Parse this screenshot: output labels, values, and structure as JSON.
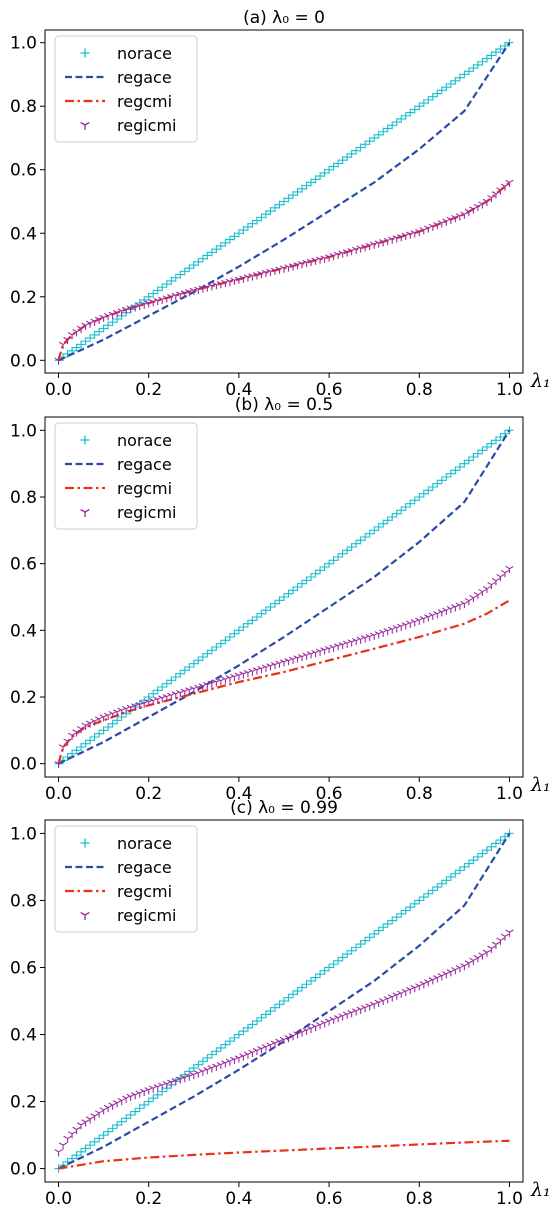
{
  "chart_data": [
    {
      "type": "line",
      "title": "(a) λ₀ = 0",
      "xlabel": "λ₁",
      "ylabel": "",
      "xlim": [
        -0.03,
        1.03
      ],
      "ylim": [
        -0.04,
        1.04
      ],
      "xticks": [
        "0.0",
        "0.2",
        "0.4",
        "0.6",
        "0.8",
        "1.0"
      ],
      "yticks": [
        "0.0",
        "0.2",
        "0.4",
        "0.6",
        "0.8",
        "1.0"
      ],
      "grid": false,
      "legend": "top-left",
      "series": [
        {
          "name": "norace",
          "color": "#17becf",
          "style": "plus-markers",
          "x": [
            0,
            0.1,
            0.2,
            0.3,
            0.4,
            0.5,
            0.6,
            0.7,
            0.8,
            0.9,
            1.0
          ],
          "y": [
            0,
            0.1,
            0.2,
            0.3,
            0.4,
            0.5,
            0.6,
            0.7,
            0.8,
            0.9,
            1.0
          ]
        },
        {
          "name": "regace",
          "color": "#2b4aa8",
          "style": "dashed",
          "x": [
            0,
            0.1,
            0.2,
            0.3,
            0.4,
            0.5,
            0.6,
            0.7,
            0.8,
            0.9,
            1.0
          ],
          "y": [
            0,
            0.065,
            0.14,
            0.215,
            0.295,
            0.38,
            0.47,
            0.56,
            0.665,
            0.785,
            1.0
          ]
        },
        {
          "name": "regcmi",
          "color": "#e8331c",
          "style": "dash-dot",
          "x": [
            0,
            0.01,
            0.03,
            0.06,
            0.1,
            0.15,
            0.2,
            0.3,
            0.4,
            0.5,
            0.6,
            0.7,
            0.8,
            0.9,
            0.95,
            1.0
          ],
          "y": [
            0,
            0.05,
            0.08,
            0.11,
            0.135,
            0.16,
            0.18,
            0.22,
            0.255,
            0.29,
            0.325,
            0.365,
            0.405,
            0.46,
            0.5,
            0.56
          ]
        },
        {
          "name": "regicmi",
          "color": "#9c2a9c",
          "style": "tri-markers",
          "x": [
            0,
            0.01,
            0.03,
            0.06,
            0.1,
            0.15,
            0.2,
            0.3,
            0.4,
            0.5,
            0.6,
            0.7,
            0.8,
            0.9,
            0.95,
            1.0
          ],
          "y": [
            0,
            0.05,
            0.08,
            0.11,
            0.135,
            0.16,
            0.18,
            0.22,
            0.255,
            0.29,
            0.325,
            0.365,
            0.405,
            0.46,
            0.5,
            0.56
          ]
        }
      ]
    },
    {
      "type": "line",
      "title": "(b) λ₀ = 0.5",
      "xlabel": "λ₁",
      "ylabel": "",
      "xlim": [
        -0.03,
        1.03
      ],
      "ylim": [
        -0.04,
        1.04
      ],
      "xticks": [
        "0.0",
        "0.2",
        "0.4",
        "0.6",
        "0.8",
        "1.0"
      ],
      "yticks": [
        "0.0",
        "0.2",
        "0.4",
        "0.6",
        "0.8",
        "1.0"
      ],
      "grid": false,
      "legend": "top-left",
      "series": [
        {
          "name": "norace",
          "color": "#17becf",
          "style": "plus-markers",
          "x": [
            0,
            0.1,
            0.2,
            0.3,
            0.4,
            0.5,
            0.6,
            0.7,
            0.8,
            0.9,
            1.0
          ],
          "y": [
            0,
            0.1,
            0.2,
            0.3,
            0.4,
            0.5,
            0.6,
            0.7,
            0.8,
            0.9,
            1.0
          ]
        },
        {
          "name": "regace",
          "color": "#2b4aa8",
          "style": "dashed",
          "x": [
            0,
            0.1,
            0.2,
            0.3,
            0.4,
            0.5,
            0.6,
            0.7,
            0.8,
            0.9,
            1.0
          ],
          "y": [
            0,
            0.065,
            0.14,
            0.215,
            0.295,
            0.38,
            0.47,
            0.56,
            0.665,
            0.785,
            1.0
          ]
        },
        {
          "name": "regcmi",
          "color": "#e8331c",
          "style": "dash-dot",
          "x": [
            0,
            0.01,
            0.03,
            0.06,
            0.1,
            0.15,
            0.2,
            0.3,
            0.4,
            0.5,
            0.6,
            0.7,
            0.8,
            0.9,
            0.95,
            1.0
          ],
          "y": [
            0,
            0.05,
            0.08,
            0.11,
            0.13,
            0.155,
            0.175,
            0.21,
            0.245,
            0.275,
            0.31,
            0.345,
            0.38,
            0.42,
            0.45,
            0.49
          ]
        },
        {
          "name": "regicmi",
          "color": "#9c2a9c",
          "style": "tri-markers",
          "x": [
            0,
            0.01,
            0.03,
            0.06,
            0.1,
            0.15,
            0.2,
            0.3,
            0.4,
            0.5,
            0.6,
            0.7,
            0.8,
            0.9,
            0.95,
            1.0
          ],
          "y": [
            0,
            0.05,
            0.085,
            0.115,
            0.14,
            0.165,
            0.185,
            0.225,
            0.265,
            0.305,
            0.345,
            0.385,
            0.43,
            0.48,
            0.525,
            0.585
          ]
        }
      ]
    },
    {
      "type": "line",
      "title": "(c) λ₀ = 0.99",
      "xlabel": "λ₁",
      "ylabel": "",
      "xlim": [
        -0.03,
        1.03
      ],
      "ylim": [
        -0.04,
        1.04
      ],
      "xticks": [
        "0.0",
        "0.2",
        "0.4",
        "0.6",
        "0.8",
        "1.0"
      ],
      "yticks": [
        "0.0",
        "0.2",
        "0.4",
        "0.6",
        "0.8",
        "1.0"
      ],
      "grid": false,
      "legend": "top-left",
      "series": [
        {
          "name": "norace",
          "color": "#17becf",
          "style": "plus-markers",
          "x": [
            0,
            0.1,
            0.2,
            0.3,
            0.4,
            0.5,
            0.6,
            0.7,
            0.8,
            0.9,
            1.0
          ],
          "y": [
            0,
            0.1,
            0.2,
            0.3,
            0.4,
            0.5,
            0.6,
            0.7,
            0.8,
            0.9,
            1.0
          ]
        },
        {
          "name": "regace",
          "color": "#2b4aa8",
          "style": "dashed",
          "x": [
            0,
            0.1,
            0.2,
            0.3,
            0.4,
            0.5,
            0.6,
            0.7,
            0.8,
            0.9,
            1.0
          ],
          "y": [
            0,
            0.065,
            0.14,
            0.215,
            0.295,
            0.38,
            0.47,
            0.56,
            0.665,
            0.785,
            1.0
          ]
        },
        {
          "name": "regcmi",
          "color": "#e8331c",
          "style": "dash-dot",
          "x": [
            0,
            0.1,
            0.2,
            0.3,
            0.4,
            0.5,
            0.6,
            0.7,
            0.8,
            0.9,
            1.0
          ],
          "y": [
            0,
            0.022,
            0.033,
            0.041,
            0.048,
            0.054,
            0.06,
            0.066,
            0.072,
            0.078,
            0.083
          ]
        },
        {
          "name": "regicmi",
          "color": "#9c2a9c",
          "style": "tri-markers",
          "x": [
            0,
            0.02,
            0.05,
            0.1,
            0.15,
            0.2,
            0.3,
            0.4,
            0.5,
            0.6,
            0.7,
            0.8,
            0.9,
            0.95,
            1.0
          ],
          "y": [
            0.05,
            0.09,
            0.13,
            0.175,
            0.21,
            0.235,
            0.28,
            0.33,
            0.385,
            0.44,
            0.49,
            0.545,
            0.605,
            0.645,
            0.705
          ]
        }
      ]
    }
  ]
}
